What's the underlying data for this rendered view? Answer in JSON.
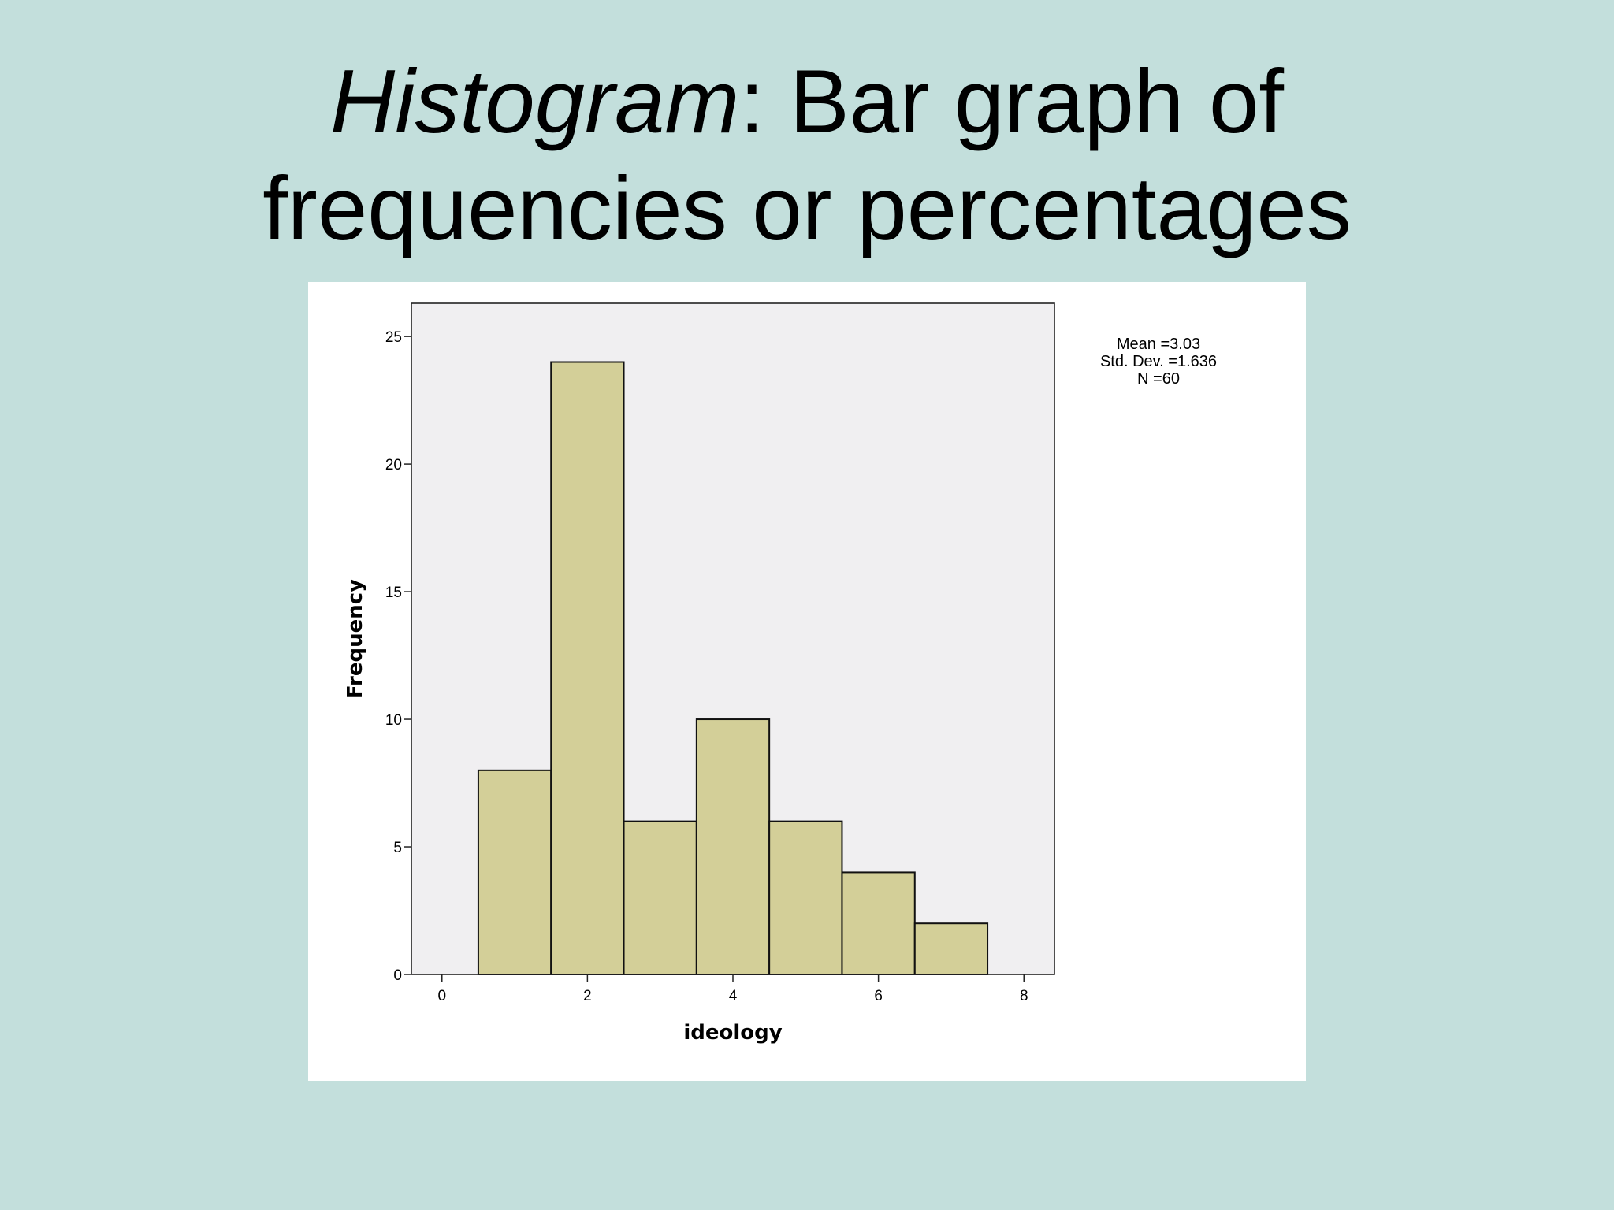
{
  "slide": {
    "title_emph": "Histogram",
    "title_rest": ": Bar graph of",
    "title_line2": "frequencies or percentages"
  },
  "chart_data": {
    "type": "bar",
    "histogram": true,
    "xlabel": "ideology",
    "ylabel": "Frequency",
    "xlim": [
      -0.42,
      8.42
    ],
    "ylim": [
      0,
      26.3
    ],
    "xticks": [
      0,
      2,
      4,
      6,
      8
    ],
    "yticks": [
      0,
      5,
      10,
      15,
      20,
      25
    ],
    "categories": [
      1,
      2,
      3,
      4,
      5,
      6,
      7
    ],
    "values": [
      8,
      24,
      6,
      10,
      6,
      4,
      2
    ],
    "bin_width": 1,
    "grid": false,
    "colors": {
      "bar_fill": "#d3cf98",
      "bar_stroke": "#111111",
      "plot_bg": "#f0eff1"
    },
    "stats": {
      "mean": "Mean =3.03",
      "std_dev": "Std. Dev. =1.636",
      "n": "N =60"
    }
  }
}
